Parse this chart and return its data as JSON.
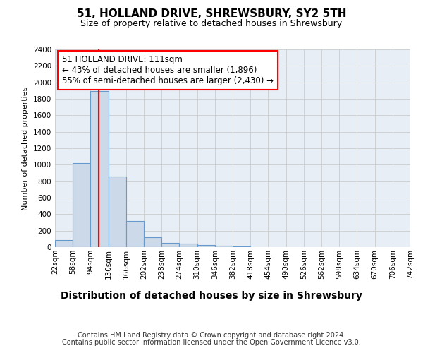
{
  "title": "51, HOLLAND DRIVE, SHREWSBURY, SY2 5TH",
  "subtitle": "Size of property relative to detached houses in Shrewsbury",
  "xlabel": "Distribution of detached houses by size in Shrewsbury",
  "ylabel": "Number of detached properties",
  "footer_line1": "Contains HM Land Registry data © Crown copyright and database right 2024.",
  "footer_line2": "Contains public sector information licensed under the Open Government Licence v3.0.",
  "bin_edges": [
    22,
    58,
    94,
    130,
    166,
    202,
    238,
    274,
    310,
    346,
    382,
    418,
    454,
    490,
    526,
    562,
    598,
    634,
    670,
    706,
    742
  ],
  "bar_values": [
    90,
    1020,
    1890,
    860,
    320,
    120,
    55,
    45,
    30,
    20,
    10,
    0,
    0,
    0,
    0,
    0,
    0,
    0,
    0,
    0
  ],
  "bar_color": "#ccd9e8",
  "bar_edge_color": "#6699cc",
  "red_line_x": 111,
  "annotation_text": "51 HOLLAND DRIVE: 111sqm\n← 43% of detached houses are smaller (1,896)\n55% of semi-detached houses are larger (2,430) →",
  "ylim": [
    0,
    2400
  ],
  "yticks": [
    0,
    200,
    400,
    600,
    800,
    1000,
    1200,
    1400,
    1600,
    1800,
    2000,
    2200,
    2400
  ],
  "grid_color": "#cccccc",
  "bg_color": "#e8eef5",
  "title_fontsize": 11,
  "subtitle_fontsize": 9,
  "ylabel_fontsize": 8,
  "xlabel_fontsize": 10,
  "tick_fontsize": 7.5,
  "footer_fontsize": 7
}
